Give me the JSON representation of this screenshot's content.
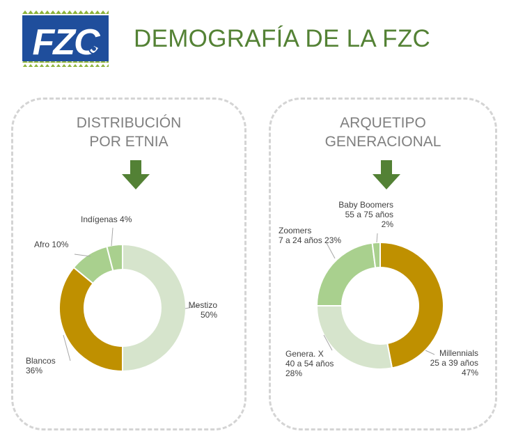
{
  "header": {
    "title": "DEMOGRAFÍA DE LA FZC",
    "logo_text": "FZC"
  },
  "colors": {
    "title_green": "#548235",
    "arrow_green": "#538135",
    "gold": "#bf9000",
    "light_green": "#a9d08e",
    "pale_green": "#d6e4cc",
    "logo_blue": "#1f4e9c"
  },
  "chart_data": [
    {
      "type": "pie",
      "title_lines": [
        "DISTRIBUCIÓN",
        "POR ETNIA"
      ],
      "slices": [
        {
          "name": "Mestizo",
          "value": 50,
          "label_lines": [
            "Mestizo",
            "50%"
          ],
          "color": "#d6e4cc"
        },
        {
          "name": "Blancos",
          "value": 36,
          "label_lines": [
            "Blancos",
            "36%"
          ],
          "color": "#bf9000"
        },
        {
          "name": "Afro",
          "value": 10,
          "label_lines": [
            "Afro 10%"
          ],
          "color": "#a9d08e"
        },
        {
          "name": "Indígenas",
          "value": 4,
          "label_lines": [
            "Indígenas 4%"
          ],
          "color": "#a9d08e"
        }
      ]
    },
    {
      "type": "pie",
      "title_lines": [
        "ARQUETIPO",
        "GENERACIONAL"
      ],
      "slices": [
        {
          "name": "Millennials",
          "value": 47,
          "label_lines": [
            "Millennials",
            "25 a 39 años",
            "47%"
          ],
          "color": "#bf9000"
        },
        {
          "name": "Genera. X",
          "value": 28,
          "label_lines": [
            "Genera. X",
            "40 a 54 años",
            "28%"
          ],
          "color": "#d6e4cc"
        },
        {
          "name": "Zoomers",
          "value": 23,
          "label_lines": [
            "Zoomers",
            "7 a 24 años 23%"
          ],
          "color": "#a9d08e"
        },
        {
          "name": "Baby Boomers",
          "value": 2,
          "label_lines": [
            "Baby Boomers",
            "55 a 75 años",
            "2%"
          ],
          "color": "#a9d08e"
        }
      ]
    }
  ]
}
